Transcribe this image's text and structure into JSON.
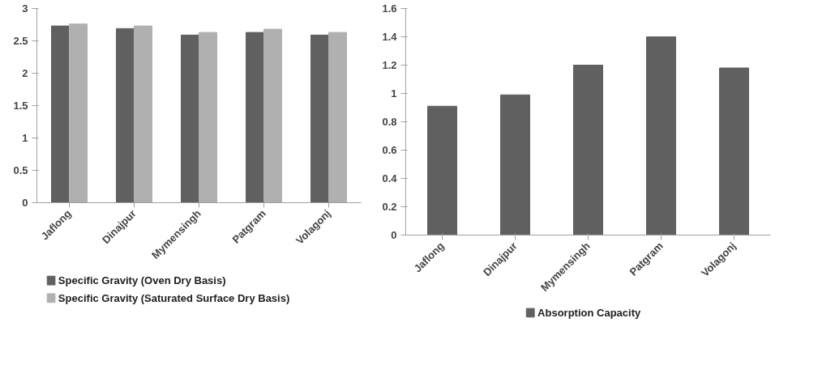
{
  "chart_data": [
    {
      "type": "bar",
      "categories": [
        "Jaflong",
        "Dinajpur",
        "Mymensingh",
        "Patgram",
        "Volagonj"
      ],
      "series": [
        {
          "name": "Specific Gravity (Oven Dry Basis)",
          "color": "#606060",
          "values": [
            2.73,
            2.69,
            2.59,
            2.63,
            2.59
          ]
        },
        {
          "name": "Specific Gravity (Saturated Surface Dry Basis)",
          "color": "#b0b0b0",
          "values": [
            2.76,
            2.73,
            2.63,
            2.68,
            2.63
          ]
        }
      ],
      "ylim": [
        0,
        3
      ],
      "yticks": [
        0,
        0.5,
        1,
        1.5,
        2,
        2.5,
        3
      ],
      "grid": false,
      "legend": "bottom"
    },
    {
      "type": "bar",
      "categories": [
        "Jaflong",
        "Dinajpur",
        "Mymensingh",
        "Patgram",
        "Volagonj"
      ],
      "series": [
        {
          "name": "Absorption Capacity",
          "color": "#606060",
          "values": [
            0.91,
            0.99,
            1.2,
            1.4,
            1.18
          ]
        }
      ],
      "ylim": [
        0,
        1.6
      ],
      "yticks": [
        0,
        0.2,
        0.4,
        0.6,
        0.8,
        1,
        1.2,
        1.4,
        1.6
      ],
      "grid": false,
      "legend": "bottom"
    }
  ]
}
